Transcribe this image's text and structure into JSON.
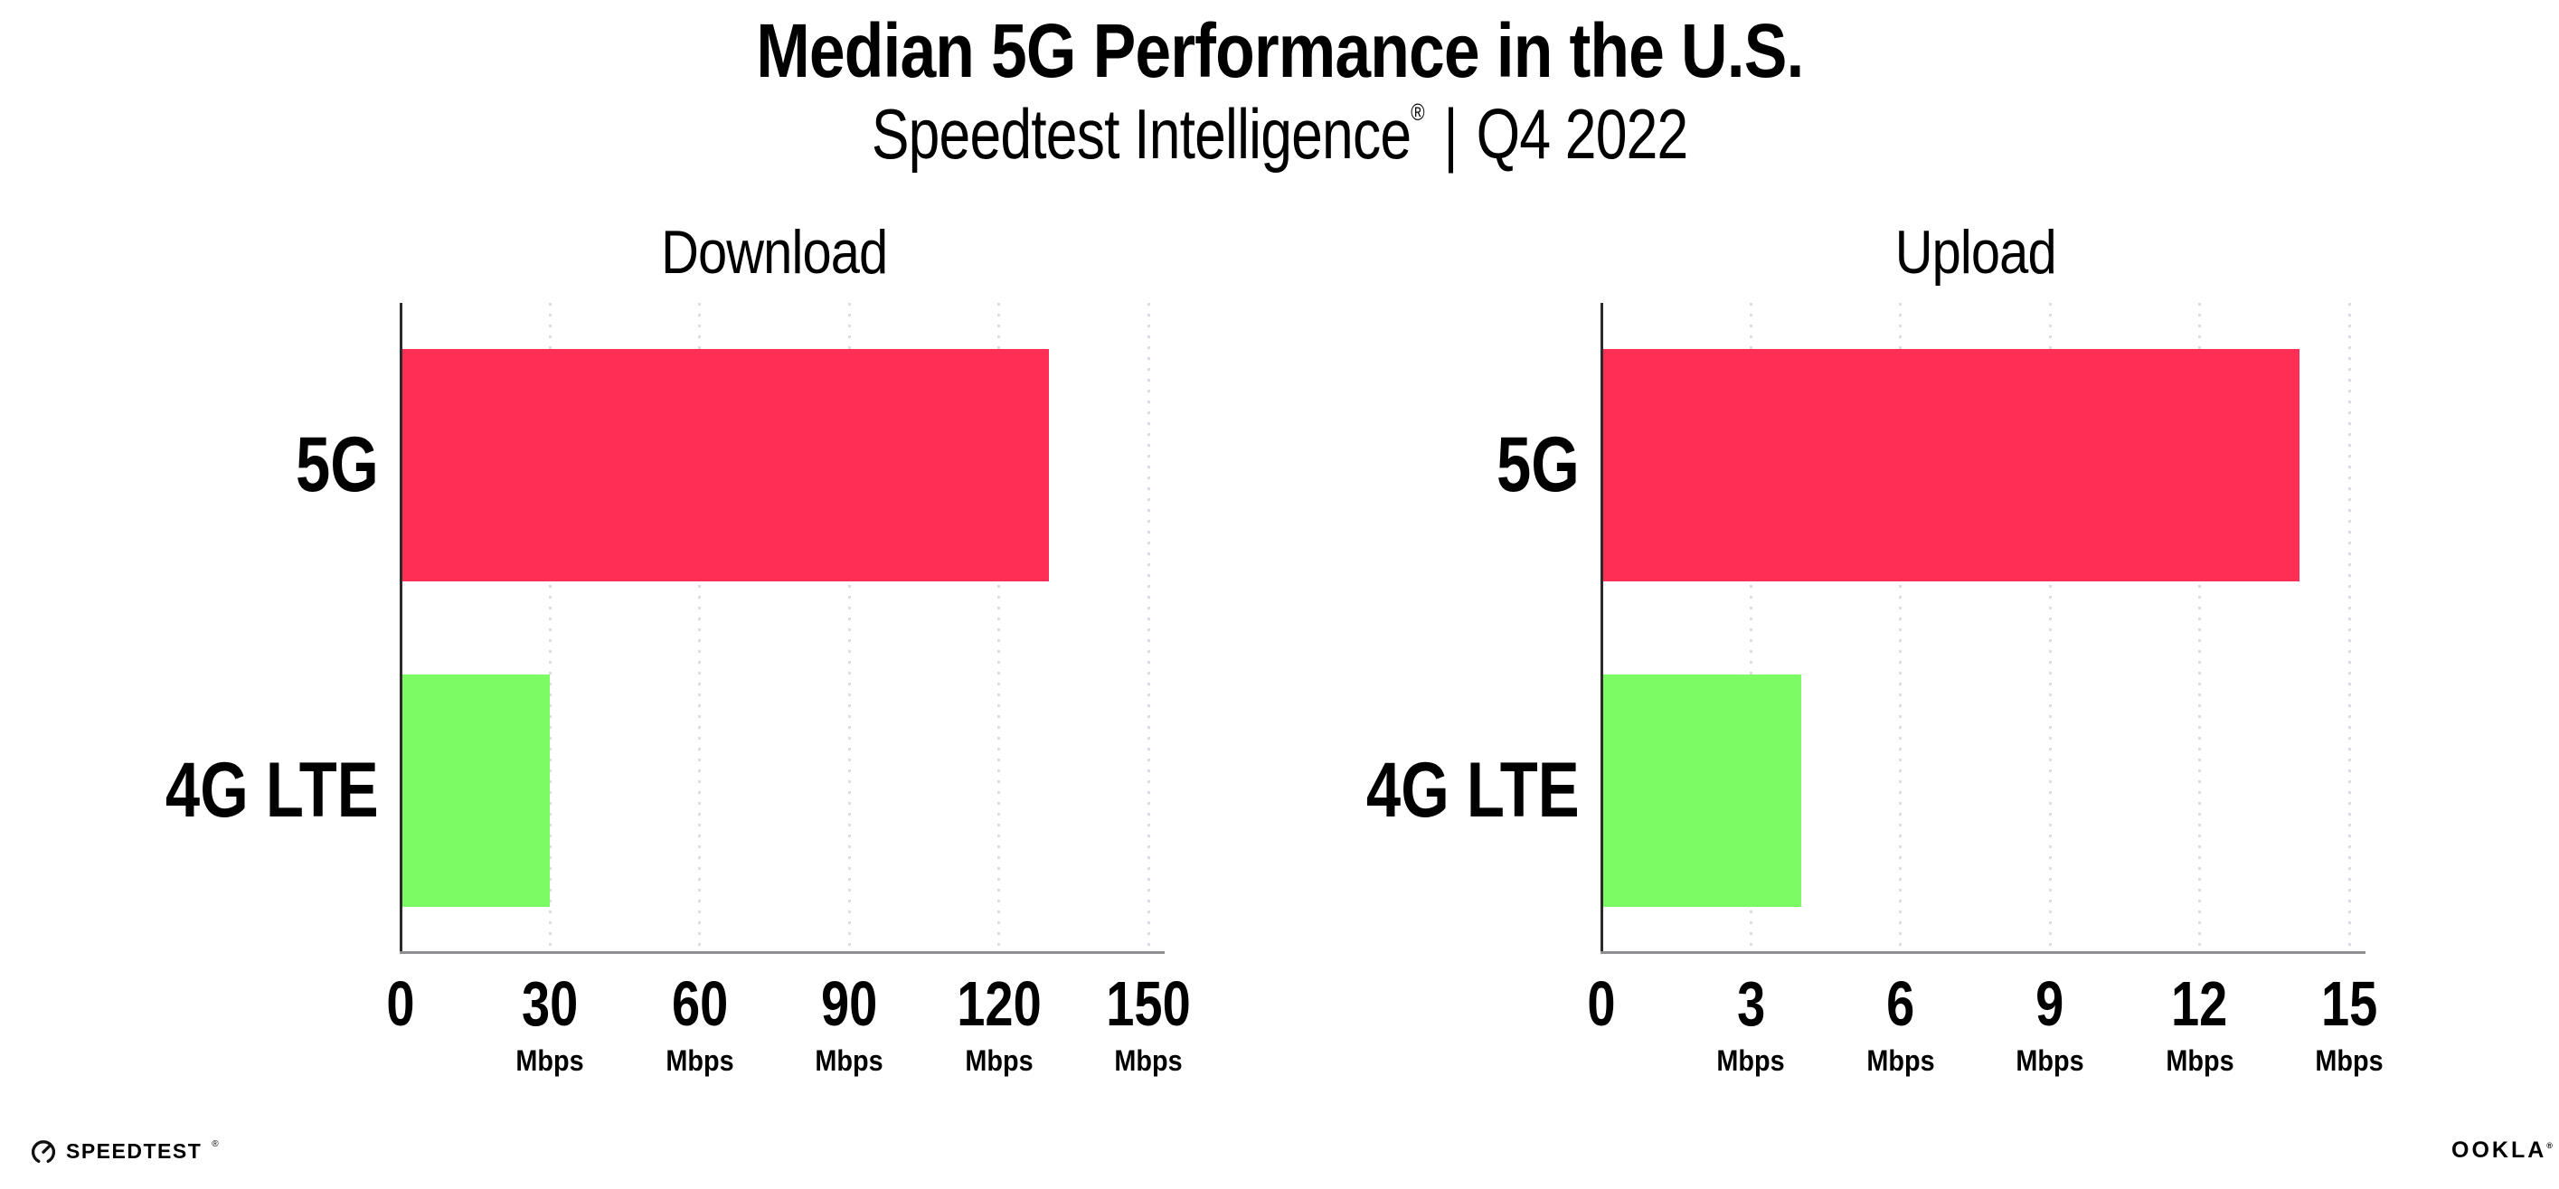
{
  "header": {
    "title": "Median 5G Performance in the U.S.",
    "subtitle": {
      "product": "Speedtest Intelligence",
      "registered_mark": "®",
      "separator": "|",
      "period": "Q4 2022"
    }
  },
  "chart_data": [
    {
      "type": "bar",
      "orientation": "horizontal",
      "title": "Download",
      "categories": [
        "5G",
        "4G LTE"
      ],
      "values": [
        130,
        30
      ],
      "unit": "Mbps",
      "xlim": [
        0,
        150
      ],
      "xticks": [
        0,
        30,
        60,
        90,
        120,
        150
      ],
      "bar_colors": [
        "#FF2E54",
        "#7DFB64"
      ],
      "grid": "dotted-vertical-gridlines",
      "legend": "none"
    },
    {
      "type": "bar",
      "orientation": "horizontal",
      "title": "Upload",
      "categories": [
        "5G",
        "4G LTE"
      ],
      "values": [
        14,
        4
      ],
      "unit": "Mbps",
      "xlim": [
        0,
        15
      ],
      "xticks": [
        0,
        3,
        6,
        9,
        12,
        15
      ],
      "bar_colors": [
        "#FF2E54",
        "#7DFB64"
      ],
      "grid": "dotted-vertical-gridlines",
      "legend": "none"
    }
  ],
  "footer": {
    "speedtest": {
      "icon": "speedometer-gauge-icon",
      "text": "SPEEDTEST",
      "trademark": "®"
    },
    "ookla": {
      "text": "OOKLA",
      "trademark": "®"
    }
  },
  "colors": {
    "background": "#FFFFFF",
    "bar_5g": "#FF2E54",
    "bar_4g_lte": "#7DFB64",
    "gridline": "#DCDCE8",
    "x_axis_line": "#8F8F96",
    "y_axis_line": "#2B2B2B",
    "text": "#000000"
  }
}
